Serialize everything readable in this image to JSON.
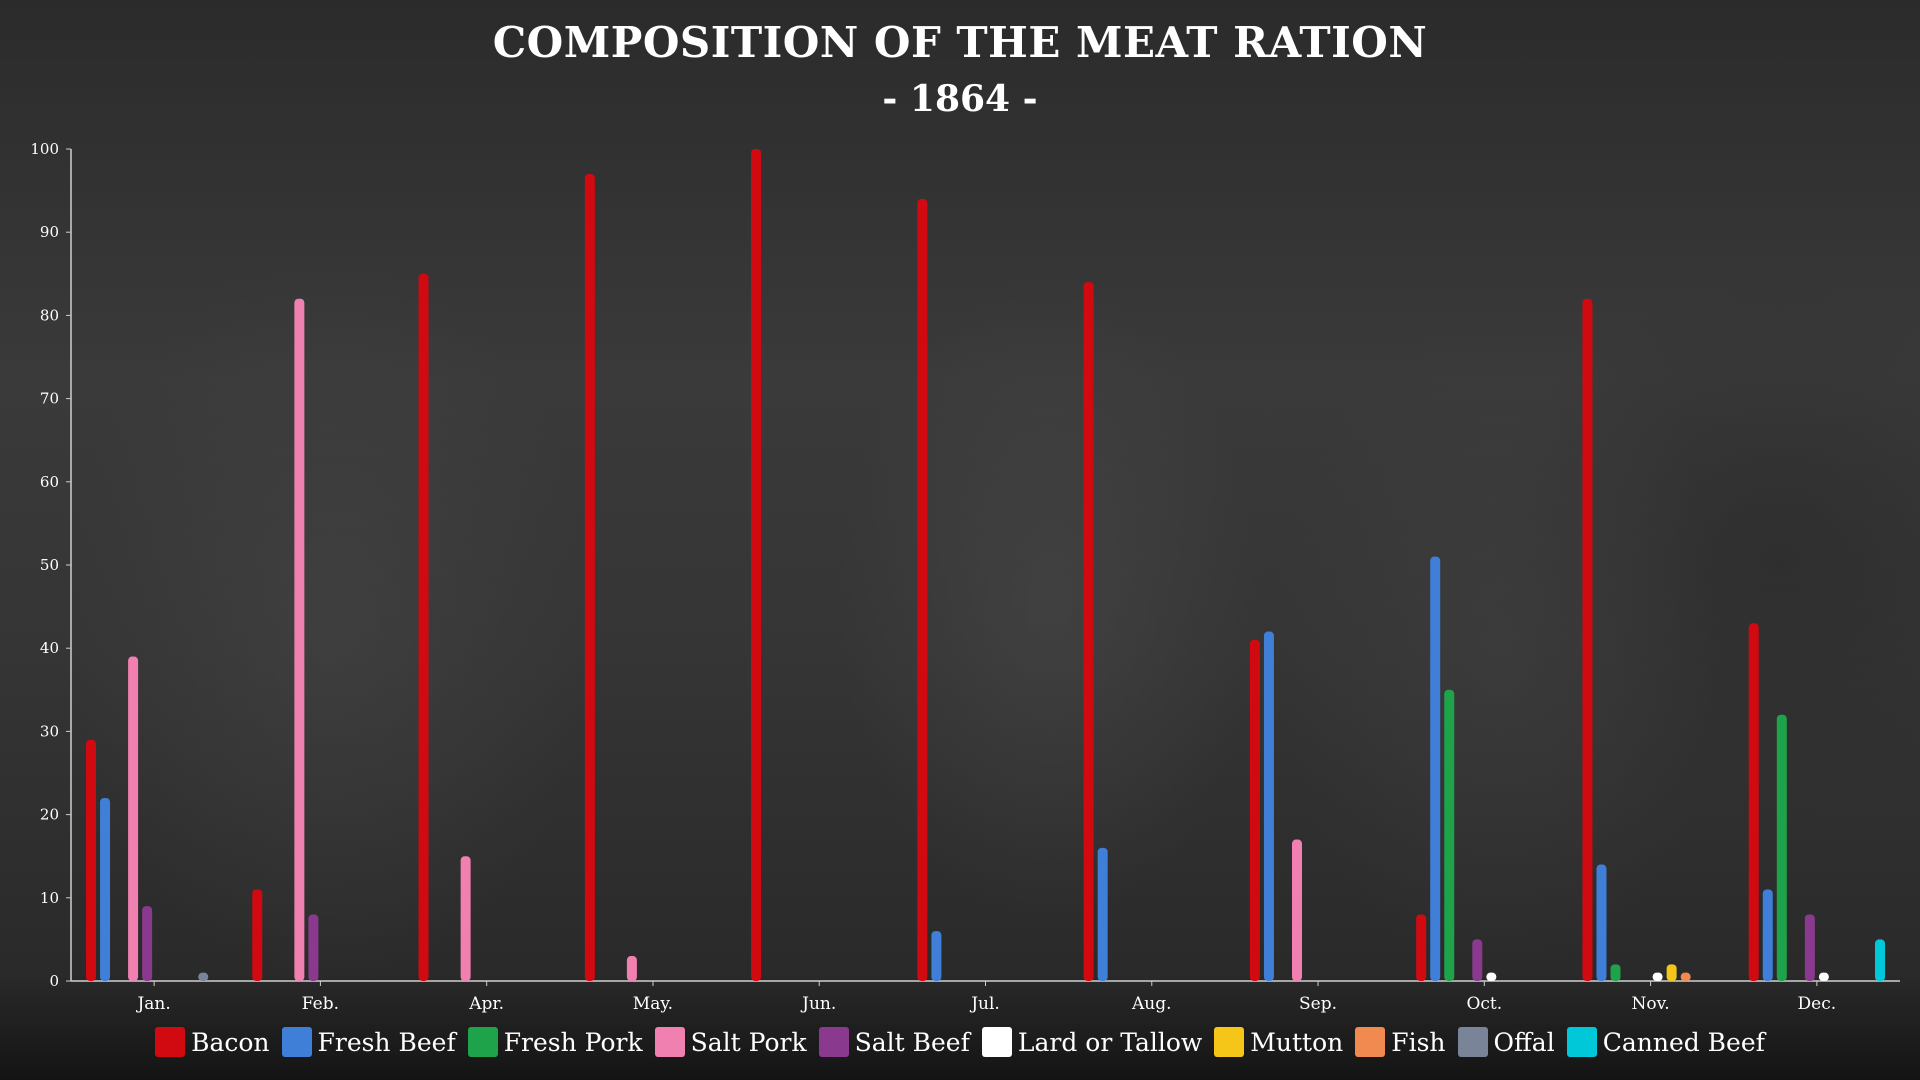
{
  "chart_data": {
    "type": "bar",
    "title": "COMPOSITION OF THE MEAT RATION",
    "subtitle": "- 1864 -",
    "xlabel": "",
    "ylabel": "",
    "ylim": [
      0,
      100
    ],
    "yticks": [
      0,
      10,
      20,
      30,
      40,
      50,
      60,
      70,
      80,
      90,
      100
    ],
    "grid": false,
    "legend_position": "bottom",
    "categories": [
      "Jan.",
      "Feb.",
      "Apr.",
      "May.",
      "Jun.",
      "Jul.",
      "Aug.",
      "Sep.",
      "Oct.",
      "Nov.",
      "Dec."
    ],
    "series": [
      {
        "name": "Bacon",
        "color": "#d10a11",
        "values": [
          29,
          11,
          85,
          97,
          100,
          94,
          84,
          41,
          8,
          82,
          43
        ]
      },
      {
        "name": "Fresh Beef",
        "color": "#3f7fd8",
        "values": [
          22,
          0,
          0,
          0,
          0,
          6,
          16,
          42,
          51,
          14,
          11
        ]
      },
      {
        "name": "Fresh Pork",
        "color": "#1fa34a",
        "values": [
          0,
          0,
          0,
          0,
          0,
          0,
          0,
          0,
          35,
          2,
          32
        ]
      },
      {
        "name": "Salt Pork",
        "color": "#f080b0",
        "values": [
          39,
          82,
          15,
          3,
          0,
          0,
          0,
          17,
          0,
          0,
          0
        ]
      },
      {
        "name": "Salt Beef",
        "color": "#8a3a8e",
        "values": [
          9,
          8,
          0,
          0,
          0,
          0,
          0,
          0,
          5,
          0,
          8
        ]
      },
      {
        "name": "Lard or Tallow",
        "color": "#ffffff",
        "values": [
          0,
          0,
          0,
          0,
          0,
          0,
          0,
          0,
          1,
          1,
          1
        ]
      },
      {
        "name": "Mutton",
        "color": "#f5c518",
        "values": [
          0,
          0,
          0,
          0,
          0,
          0,
          0,
          0,
          0,
          2,
          0
        ]
      },
      {
        "name": "Fish",
        "color": "#f08a50",
        "values": [
          0,
          0,
          0,
          0,
          0,
          0,
          0,
          0,
          0,
          1,
          0
        ]
      },
      {
        "name": "Offal",
        "color": "#7a8499",
        "values": [
          1,
          0,
          0,
          0,
          0,
          0,
          0,
          0,
          0,
          0,
          0
        ]
      },
      {
        "name": "Canned Beef",
        "color": "#00c8d8",
        "values": [
          0,
          0,
          0,
          0,
          0,
          0,
          0,
          0,
          0,
          0,
          5
        ]
      }
    ]
  }
}
